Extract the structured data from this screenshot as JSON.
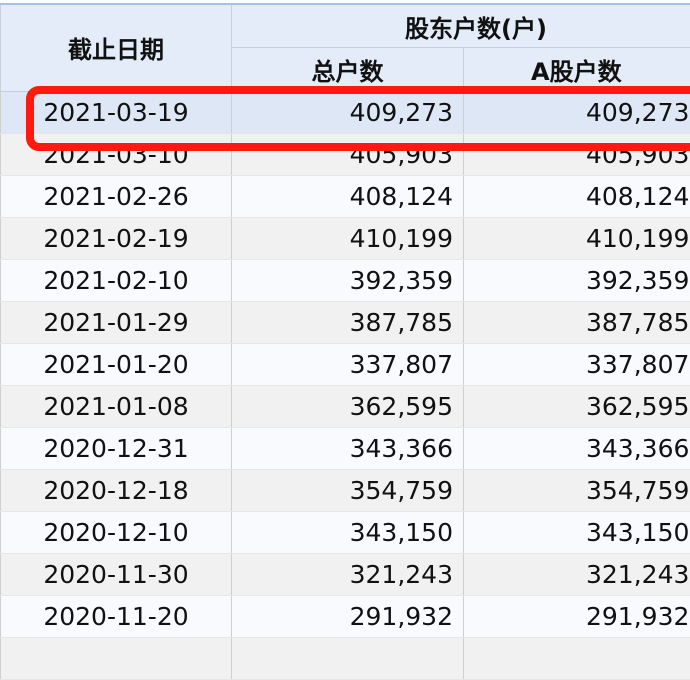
{
  "header": {
    "date_col": "截止日期",
    "group": "股东户数(户)",
    "total_col": "总户数",
    "a_col": "A股户数"
  },
  "rows": [
    {
      "date": "2021-03-19",
      "total": "409,273",
      "a": "409,273"
    },
    {
      "date": "2021-03-10",
      "total": "405,903",
      "a": "405,903"
    },
    {
      "date": "2021-02-26",
      "total": "408,124",
      "a": "408,124"
    },
    {
      "date": "2021-02-19",
      "total": "410,199",
      "a": "410,199"
    },
    {
      "date": "2021-02-10",
      "total": "392,359",
      "a": "392,359"
    },
    {
      "date": "2021-01-29",
      "total": "387,785",
      "a": "387,785"
    },
    {
      "date": "2021-01-20",
      "total": "337,807",
      "a": "337,807"
    },
    {
      "date": "2021-01-08",
      "total": "362,595",
      "a": "362,595"
    },
    {
      "date": "2020-12-31",
      "total": "343,366",
      "a": "343,366"
    },
    {
      "date": "2020-12-18",
      "total": "354,759",
      "a": "354,759"
    },
    {
      "date": "2020-12-10",
      "total": "343,150",
      "a": "343,150"
    },
    {
      "date": "2020-11-30",
      "total": "321,243",
      "a": "321,243"
    },
    {
      "date": "2020-11-20",
      "total": "291,932",
      "a": "291,932"
    }
  ],
  "highlight_color": "#ff1a0f",
  "selected_row": 0
}
